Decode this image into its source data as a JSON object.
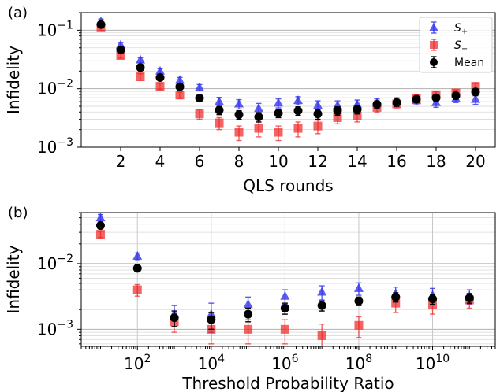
{
  "chart_data": [
    {
      "panel_label": "(a)",
      "type": "scatter",
      "xlabel": "QLS rounds",
      "ylabel": "Infidelity",
      "xscale": "linear",
      "yscale": "log",
      "xlim": [
        0,
        21
      ],
      "ylim": [
        0.001,
        0.2
      ],
      "xticks": [
        2,
        4,
        6,
        8,
        10,
        12,
        14,
        16,
        18,
        20
      ],
      "xtick_labels": [
        "2",
        "4",
        "6",
        "8",
        "10",
        "12",
        "14",
        "16",
        "18",
        "20"
      ],
      "yticks": [
        0.001,
        0.01,
        0.1
      ],
      "ytick_labels": [
        {
          "base": "10",
          "exp": "−3"
        },
        {
          "base": "10",
          "exp": "−2"
        },
        {
          "base": "10",
          "exp": "−1"
        }
      ],
      "grid": "horizontal major and minor",
      "legend": "top-right",
      "x": [
        1,
        2,
        3,
        4,
        5,
        6,
        7,
        8,
        9,
        10,
        11,
        12,
        13,
        14,
        15,
        16,
        17,
        18,
        19,
        20
      ],
      "series": [
        {
          "name": "S₊",
          "color": "#3333ee",
          "marker": "triangle",
          "values": [
            0.14,
            0.056,
            0.031,
            0.02,
            0.014,
            0.0105,
            0.006,
            0.0055,
            0.0046,
            0.0057,
            0.0063,
            0.0052,
            0.0052,
            0.0054,
            0.0057,
            0.006,
            0.0063,
            0.0058,
            0.0068,
            0.0066
          ],
          "err": [
            0.015,
            0.006,
            0.003,
            0.002,
            0.0016,
            0.0013,
            0.0011,
            0.001,
            0.001,
            0.001,
            0.001,
            0.001,
            0.001,
            0.001,
            0.001,
            0.001,
            0.001,
            0.001,
            0.001,
            0.0012
          ]
        },
        {
          "name": "S₋",
          "color": "#ee2222",
          "marker": "square",
          "values": [
            0.11,
            0.037,
            0.016,
            0.011,
            0.0078,
            0.0037,
            0.0026,
            0.0018,
            0.0021,
            0.0018,
            0.0021,
            0.0023,
            0.0032,
            0.0034,
            0.0048,
            0.0055,
            0.0068,
            0.0079,
            0.0085,
            0.011
          ],
          "err": [
            0.012,
            0.004,
            0.002,
            0.0013,
            0.001,
            0.0007,
            0.0006,
            0.0005,
            0.0006,
            0.0005,
            0.0006,
            0.0006,
            0.0007,
            0.0007,
            0.0008,
            0.0008,
            0.001,
            0.001,
            0.0011,
            0.0013
          ]
        },
        {
          "name": "Mean",
          "color": "#000000",
          "marker": "circle",
          "values": [
            0.125,
            0.046,
            0.023,
            0.0155,
            0.0108,
            0.0069,
            0.0043,
            0.0036,
            0.0033,
            0.0038,
            0.0042,
            0.0037,
            0.0042,
            0.0044,
            0.0054,
            0.0058,
            0.0066,
            0.007,
            0.0076,
            0.0088
          ],
          "err": [
            0.012,
            0.004,
            0.002,
            0.0015,
            0.001,
            0.0008,
            0.0007,
            0.0006,
            0.0006,
            0.0006,
            0.0007,
            0.0007,
            0.0007,
            0.0007,
            0.0008,
            0.0008,
            0.0008,
            0.0009,
            0.001,
            0.0012
          ]
        }
      ]
    },
    {
      "panel_label": "(b)",
      "type": "scatter",
      "xlabel": "Threshold Probability Ratio",
      "ylabel": "Infidelity",
      "xscale": "log",
      "yscale": "log",
      "xlim": [
        3,
        500000000000
      ],
      "ylim": [
        0.00055,
        0.06
      ],
      "xticks": [
        100,
        10000,
        1000000,
        100000000,
        10000000000
      ],
      "xtick_labels": [
        {
          "base": "10",
          "exp": "2"
        },
        {
          "base": "10",
          "exp": "4"
        },
        {
          "base": "10",
          "exp": "6"
        },
        {
          "base": "10",
          "exp": "8"
        },
        {
          "base": "10",
          "exp": "10"
        }
      ],
      "yticks": [
        0.001,
        0.01
      ],
      "ytick_labels": [
        {
          "base": "10",
          "exp": "−3"
        },
        {
          "base": "10",
          "exp": "−2"
        }
      ],
      "grid": "major and minor",
      "x": [
        10,
        100,
        1000,
        10000,
        100000,
        1000000,
        10000000,
        100000000,
        1000000000,
        10000000000,
        100000000000
      ],
      "series": [
        {
          "name": "S₊",
          "color": "#3333ee",
          "marker": "triangle",
          "values": [
            0.05,
            0.013,
            0.0017,
            0.0017,
            0.0024,
            0.0032,
            0.0037,
            0.0042,
            0.0035,
            0.0033,
            0.0032
          ],
          "err": [
            0.006,
            0.0015,
            0.0006,
            0.0008,
            0.0007,
            0.0008,
            0.0009,
            0.0009,
            0.0009,
            0.0009,
            0.0008
          ]
        },
        {
          "name": "S₋",
          "color": "#ee2222",
          "marker": "square",
          "values": [
            0.028,
            0.004,
            0.0013,
            0.001,
            0.001,
            0.001,
            0.0008,
            0.00115,
            0.0025,
            0.0024,
            0.0028
          ],
          "err": [
            0.003,
            0.0008,
            0.0004,
            0.0004,
            0.0004,
            0.0004,
            0.0004,
            0.0004,
            0.0007,
            0.0007,
            0.0007
          ]
        },
        {
          "name": "Mean",
          "color": "#000000",
          "marker": "circle",
          "values": [
            0.038,
            0.0085,
            0.0015,
            0.0014,
            0.0017,
            0.0021,
            0.0023,
            0.0027,
            0.0031,
            0.0029,
            0.003
          ],
          "err": [
            0.004,
            0.001,
            0.0004,
            0.0004,
            0.0004,
            0.0004,
            0.0004,
            0.0004,
            0.0005,
            0.0005,
            0.0005
          ]
        }
      ]
    }
  ]
}
